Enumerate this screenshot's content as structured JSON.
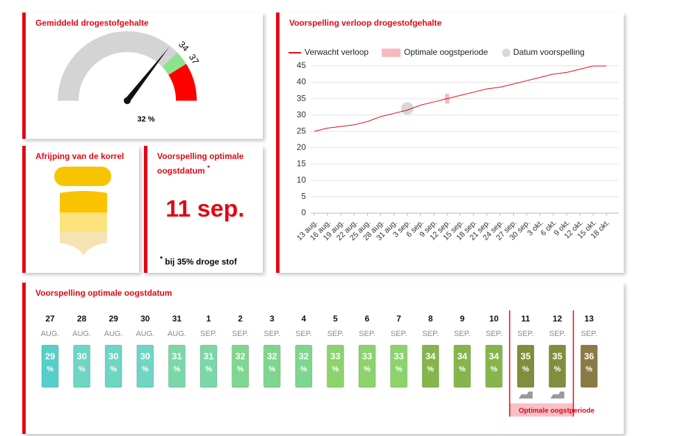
{
  "gauge": {
    "title": "Gemiddeld drogestofgehalte",
    "value": 32,
    "value_label": "32 %",
    "thresholds": [
      34,
      37
    ],
    "range": [
      0,
      45
    ],
    "colors": [
      "#d4d4d4",
      "#8de38d",
      "#ff0000"
    ]
  },
  "ripening": {
    "title": "Afrijping van de korrel"
  },
  "harvest_date": {
    "title": "Voorspelling optimale oogstdatum",
    "title_mark": "*",
    "date": "11 sep.",
    "note_mark": "*",
    "note": "bij 35% droge stof"
  },
  "chart_data": {
    "type": "line",
    "title": "Voorspelling verloop drogestofgehalte",
    "categories": [
      "13 aug.",
      "16 aug.",
      "19 aug.",
      "22 aug.",
      "25 aug.",
      "28 aug.",
      "31 aug.",
      "3 sep.",
      "6 sep.",
      "9 sep.",
      "12 sep.",
      "15 sep.",
      "18 sep.",
      "21 sep.",
      "24 sep.",
      "27 sep.",
      "30 sep.",
      "3 okt.",
      "6 okt.",
      "9 okt.",
      "12 okt.",
      "15 okt.",
      "18 okt."
    ],
    "series": [
      {
        "name": "Verwacht verloop",
        "color": "#e30613",
        "style": "line",
        "values": [
          25,
          26,
          26.5,
          27,
          28,
          29.5,
          30.5,
          31.5,
          33,
          34,
          35,
          36,
          37,
          38,
          38.5,
          39.5,
          40.5,
          41.5,
          42.5,
          43,
          44,
          45,
          45
        ]
      },
      {
        "name": "Optimale oogstperiode",
        "color": "#f9b8c0",
        "style": "band",
        "values": [
          null,
          null,
          null,
          null,
          null,
          null,
          null,
          null,
          null,
          null,
          35,
          null,
          null,
          null,
          null,
          null,
          null,
          null,
          null,
          null,
          null,
          null,
          null
        ]
      },
      {
        "name": "Datum voorspelling",
        "color": "#d8d8d8",
        "style": "dot",
        "values": [
          null,
          null,
          null,
          null,
          null,
          null,
          null,
          32,
          null,
          null,
          null,
          null,
          null,
          null,
          null,
          null,
          null,
          null,
          null,
          null,
          null,
          null,
          null
        ]
      }
    ],
    "ylim": [
      0,
      45
    ],
    "yticks": [
      0,
      5,
      10,
      15,
      20,
      25,
      30,
      35,
      40,
      45
    ],
    "grid": true
  },
  "harvest_forecast": {
    "title": "Voorspelling optimale oogstdatum",
    "unit": "%",
    "optimal_label": "Optimale oogstperiode",
    "days": [
      {
        "day": 27,
        "month": "AUG.",
        "value": 29,
        "color": "#55cfc9",
        "optimal": false
      },
      {
        "day": 28,
        "month": "AUG.",
        "value": 30,
        "color": "#6ed6c3",
        "optimal": false
      },
      {
        "day": 29,
        "month": "AUG.",
        "value": 30,
        "color": "#6ed6c3",
        "optimal": false
      },
      {
        "day": 30,
        "month": "AUG.",
        "value": 30,
        "color": "#6ed6c3",
        "optimal": false
      },
      {
        "day": 31,
        "month": "AUG.",
        "value": 31,
        "color": "#7ad8a8",
        "optimal": false
      },
      {
        "day": 1,
        "month": "SEP.",
        "value": 31,
        "color": "#7ad8a8",
        "optimal": false
      },
      {
        "day": 2,
        "month": "SEP.",
        "value": 32,
        "color": "#7fd68f",
        "optimal": false
      },
      {
        "day": 3,
        "month": "SEP.",
        "value": 32,
        "color": "#7fd68f",
        "optimal": false
      },
      {
        "day": 4,
        "month": "SEP.",
        "value": 32,
        "color": "#7fd68f",
        "optimal": false
      },
      {
        "day": 5,
        "month": "SEP.",
        "value": 33,
        "color": "#8cd46a",
        "optimal": false
      },
      {
        "day": 6,
        "month": "SEP.",
        "value": 33,
        "color": "#8cd46a",
        "optimal": false
      },
      {
        "day": 7,
        "month": "SEP.",
        "value": 33,
        "color": "#8cd46a",
        "optimal": false
      },
      {
        "day": 8,
        "month": "SEP.",
        "value": 34,
        "color": "#86b54c",
        "optimal": false
      },
      {
        "day": 9,
        "month": "SEP.",
        "value": 34,
        "color": "#86b54c",
        "optimal": false
      },
      {
        "day": 10,
        "month": "SEP.",
        "value": 34,
        "color": "#86b54c",
        "optimal": false
      },
      {
        "day": 11,
        "month": "SEP.",
        "value": 35,
        "color": "#7f8f3d",
        "optimal": true
      },
      {
        "day": 12,
        "month": "SEP.",
        "value": 35,
        "color": "#7f8f3d",
        "optimal": true
      },
      {
        "day": 13,
        "month": "SEP.",
        "value": 36,
        "color": "#8a7a45",
        "optimal": false
      }
    ]
  }
}
